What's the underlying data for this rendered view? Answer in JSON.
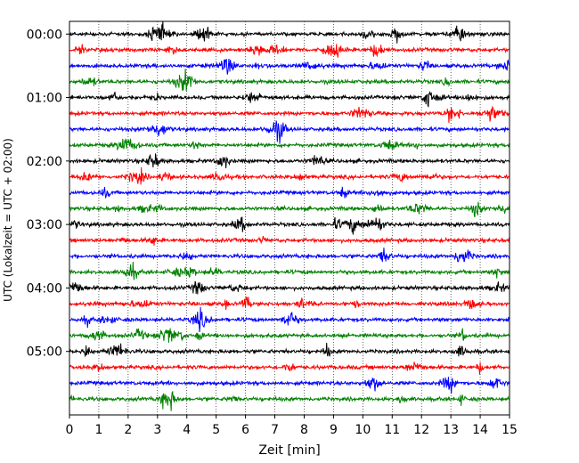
{
  "chart_data": {
    "type": "line",
    "title": "",
    "xlabel": "Zeit  [min]",
    "ylabel": "UTC (Lokalzeit = UTC + 02:00)",
    "xlim": [
      0,
      15
    ],
    "xticks": [
      0,
      1,
      2,
      3,
      4,
      5,
      6,
      7,
      8,
      9,
      10,
      11,
      12,
      13,
      14,
      15
    ],
    "yticks": [
      {
        "label": "00:00",
        "minutes": 0
      },
      {
        "label": "01:00",
        "minutes": 60
      },
      {
        "label": "02:00",
        "minutes": 120
      },
      {
        "label": "03:00",
        "minutes": 180
      },
      {
        "label": "04:00",
        "minutes": 240
      },
      {
        "label": "05:00",
        "minutes": 300
      }
    ],
    "ylim_minutes": [
      -12,
      360
    ],
    "grid": {
      "x": true,
      "style": "dotted"
    },
    "trace_interval_minutes": 15,
    "trace_count": 24,
    "trace_colors": [
      "#000000",
      "#ff0000",
      "#0000ff",
      "#008000"
    ]
  }
}
